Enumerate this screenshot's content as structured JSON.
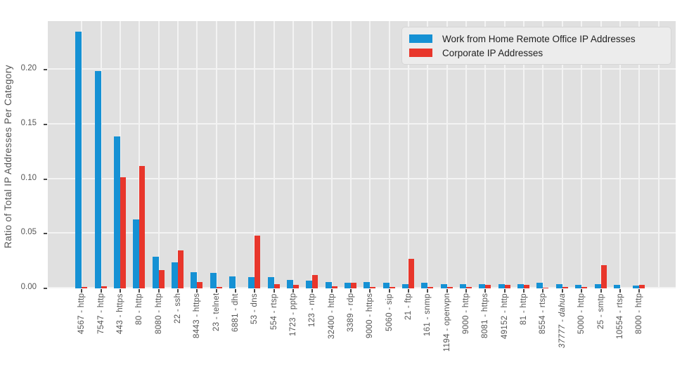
{
  "chart_data": {
    "type": "bar",
    "title": "",
    "xlabel": "",
    "ylabel": "Ratio of Total IP Addresses Per Category",
    "categories": [
      "4567 - http",
      "7547 - http",
      "443 - https",
      "80 - http",
      "8080 - http",
      "22 - ssh",
      "8443 - https",
      "23 - telnet",
      "6881 - dht",
      "53 - dns",
      "554 - rtsp",
      "1723 - pptp",
      "123 - ntp",
      "32400 - http",
      "3389 - rdp",
      "9000 - https",
      "5060 - sip",
      "21 - ftp",
      "161 - snmp",
      "1194 - openvpn",
      "9000 - http",
      "8081 - https",
      "49152 - http",
      "81 - http",
      "8554 - rtsp",
      "37777 - dahua",
      "5000 - http",
      "25 - smtp",
      "10554 - rtsp",
      "8000 - http"
    ],
    "italic_categories": [
      "37777 - dahua"
    ],
    "series": [
      {
        "name": "Work from Home Remote Office IP Addresses",
        "color": "#1591d4",
        "values": [
          0.235,
          0.199,
          0.139,
          0.063,
          0.029,
          0.024,
          0.015,
          0.014,
          0.011,
          0.01,
          0.01,
          0.008,
          0.007,
          0.006,
          0.005,
          0.006,
          0.005,
          0.004,
          0.005,
          0.004,
          0.004,
          0.004,
          0.004,
          0.004,
          0.005,
          0.004,
          0.0035,
          0.004,
          0.003,
          0.0025
        ]
      },
      {
        "name": "Corporate IP Addresses",
        "color": "#e8362b",
        "values": [
          0.001,
          0.002,
          0.102,
          0.112,
          0.017,
          0.035,
          0.006,
          0.001,
          0.0,
          0.048,
          0.004,
          0.003,
          0.012,
          0.002,
          0.005,
          0.001,
          0.001,
          0.027,
          0.001,
          0.001,
          0.001,
          0.003,
          0.003,
          0.003,
          0.0005,
          0.001,
          0.001,
          0.021,
          0.0,
          0.0035
        ]
      }
    ],
    "ylim": [
      0,
      0.2447
    ],
    "yticks": [
      "0.00",
      "0.05",
      "0.10",
      "0.15",
      "0.20"
    ],
    "ytick_values": [
      0.0,
      0.05,
      0.1,
      0.15,
      0.2
    ],
    "grid": "both",
    "legend_position": "upper right",
    "plot_bg": "#e0e0e0",
    "grid_color": "#f3f3f3",
    "axis_text_color": "#555555",
    "tick_mark_color": "#4a4a4a"
  }
}
